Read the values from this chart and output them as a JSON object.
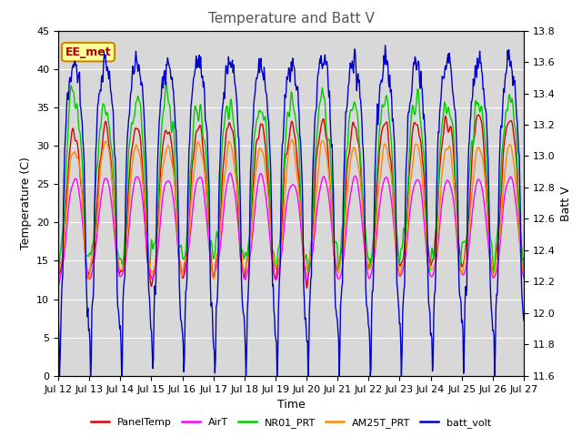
{
  "title": "Temperature and Batt V",
  "xlabel": "Time",
  "ylabel_left": "Temperature (C)",
  "ylabel_right": "Batt V",
  "ylim_left": [
    0,
    45
  ],
  "ylim_right": [
    11.6,
    13.8
  ],
  "yticks_left": [
    0,
    5,
    10,
    15,
    20,
    25,
    30,
    35,
    40,
    45
  ],
  "yticks_right": [
    11.6,
    11.8,
    12.0,
    12.2,
    12.4,
    12.6,
    12.8,
    13.0,
    13.2,
    13.4,
    13.6,
    13.8
  ],
  "xtick_labels": [
    "Jul 12",
    "Jul 13",
    "Jul 14",
    "Jul 15",
    "Jul 16",
    "Jul 17",
    "Jul 18",
    "Jul 19",
    "Jul 20",
    "Jul 21",
    "Jul 22",
    "Jul 23",
    "Jul 24",
    "Jul 25",
    "Jul 26",
    "Jul 27"
  ],
  "annotation_text": "EE_met",
  "annotation_color": "#aa0000",
  "annotation_bg": "#ffff99",
  "panel_color": "#dd0000",
  "air_color": "#ff00ff",
  "nr01_color": "#00cc00",
  "am25_color": "#ff8800",
  "batt_color": "#0000cc",
  "plot_bg": "#d8d8d8",
  "fig_bg": "#ffffff"
}
